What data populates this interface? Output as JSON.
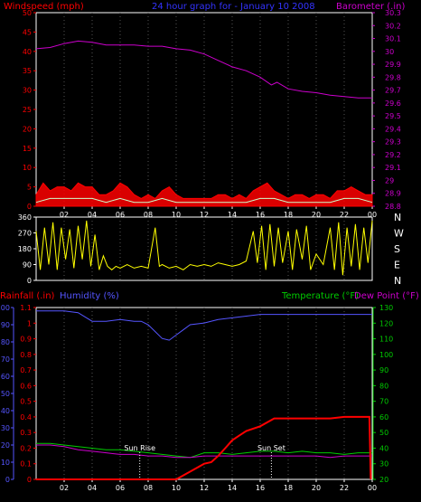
{
  "header": {
    "wind_title": "Windspeed (mph)",
    "graph_title": "24 hour graph for - January 10 2008",
    "baro_title": "Barometer (.in)"
  },
  "lower_header": {
    "rain_title": "Rainfall (.in)",
    "humidity_title": "Humidity (%)",
    "temp_title": "Temperature (°F)",
    "dew_title": "Dew Point (°F)"
  },
  "colors": {
    "wind": "#ff0000",
    "gust": "#ff0000",
    "wind_avg": "#ccffcc",
    "barometer": "#cc00cc",
    "direction": "#ffff00",
    "humidity": "#5555ff",
    "rain": "#ff0000",
    "temperature": "#00cc00",
    "dewpoint": "#cc00cc",
    "axis": "#ffffff",
    "grid": "#555555"
  },
  "sun_labels": {
    "sunrise": "Sun Rise",
    "sunset": "Sun Set"
  },
  "chart_data": [
    {
      "type": "line",
      "name": "wind-barometer",
      "x_ticks": [
        "02",
        "04",
        "06",
        "08",
        "10",
        "12",
        "14",
        "16",
        "18",
        "20",
        "22",
        "00"
      ],
      "left_axis": {
        "ticks": [
          0,
          5,
          10,
          15,
          20,
          25,
          30,
          35,
          40,
          45,
          50
        ],
        "ylim": [
          0,
          50
        ]
      },
      "right_axis": {
        "ticks": [
          "28.8",
          "28.9",
          "29",
          "29.1",
          "29.2",
          "29.3",
          "29.4",
          "29.5",
          "29.6",
          "29.7",
          "29.8",
          "29.9",
          "30",
          "30.1",
          "30.2",
          "30.3"
        ],
        "ylim": [
          28.8,
          30.3
        ]
      },
      "barometer": [
        [
          0,
          30.02
        ],
        [
          1,
          30.03
        ],
        [
          2,
          30.06
        ],
        [
          3,
          30.08
        ],
        [
          4,
          30.07
        ],
        [
          5,
          30.05
        ],
        [
          6,
          30.05
        ],
        [
          7,
          30.05
        ],
        [
          8,
          30.04
        ],
        [
          9,
          30.04
        ],
        [
          10,
          30.02
        ],
        [
          11,
          30.01
        ],
        [
          12,
          29.98
        ],
        [
          13,
          29.93
        ],
        [
          14,
          29.88
        ],
        [
          15,
          29.85
        ],
        [
          16,
          29.8
        ],
        [
          16.8,
          29.74
        ],
        [
          17.2,
          29.76
        ],
        [
          18,
          29.71
        ],
        [
          19,
          29.69
        ],
        [
          20,
          29.68
        ],
        [
          21,
          29.66
        ],
        [
          22,
          29.65
        ],
        [
          23,
          29.64
        ],
        [
          24,
          29.64
        ]
      ],
      "wind_gust": [
        [
          0,
          3
        ],
        [
          0.5,
          6
        ],
        [
          1,
          4
        ],
        [
          1.5,
          5
        ],
        [
          2,
          5
        ],
        [
          2.5,
          4
        ],
        [
          3,
          6
        ],
        [
          3.5,
          5
        ],
        [
          4,
          5
        ],
        [
          4.5,
          3
        ],
        [
          5,
          3
        ],
        [
          5.5,
          4
        ],
        [
          6,
          6
        ],
        [
          6.5,
          5
        ],
        [
          7,
          3
        ],
        [
          7.5,
          2
        ],
        [
          8,
          3
        ],
        [
          8.5,
          2
        ],
        [
          9,
          4
        ],
        [
          9.5,
          5
        ],
        [
          10,
          3
        ],
        [
          10.5,
          2
        ],
        [
          11,
          2
        ],
        [
          11.5,
          2
        ],
        [
          12,
          2
        ],
        [
          12.5,
          2
        ],
        [
          13,
          3
        ],
        [
          13.5,
          3
        ],
        [
          14,
          2
        ],
        [
          14.5,
          3
        ],
        [
          15,
          2
        ],
        [
          15.5,
          4
        ],
        [
          16,
          5
        ],
        [
          16.5,
          6
        ],
        [
          17,
          4
        ],
        [
          17.5,
          3
        ],
        [
          18,
          2
        ],
        [
          18.5,
          3
        ],
        [
          19,
          3
        ],
        [
          19.5,
          2
        ],
        [
          20,
          3
        ],
        [
          20.5,
          3
        ],
        [
          21,
          2
        ],
        [
          21.5,
          4
        ],
        [
          22,
          4
        ],
        [
          22.5,
          5
        ],
        [
          23,
          4
        ],
        [
          23.5,
          3
        ],
        [
          24,
          3
        ]
      ],
      "wind_avg": [
        [
          0,
          1
        ],
        [
          1,
          2
        ],
        [
          2,
          2
        ],
        [
          3,
          2
        ],
        [
          4,
          2
        ],
        [
          5,
          1
        ],
        [
          6,
          2
        ],
        [
          7,
          1
        ],
        [
          8,
          1
        ],
        [
          9,
          2
        ],
        [
          10,
          1
        ],
        [
          11,
          1
        ],
        [
          12,
          1
        ],
        [
          13,
          1
        ],
        [
          14,
          1
        ],
        [
          15,
          1
        ],
        [
          16,
          2
        ],
        [
          17,
          2
        ],
        [
          18,
          1
        ],
        [
          19,
          1
        ],
        [
          20,
          1
        ],
        [
          21,
          1
        ],
        [
          22,
          2
        ],
        [
          23,
          2
        ],
        [
          24,
          1
        ]
      ]
    },
    {
      "type": "line",
      "name": "wind-direction",
      "right_labels": [
        "N",
        "W",
        "S",
        "E",
        "N"
      ],
      "left_axis": {
        "ticks": [
          0,
          90,
          180,
          270,
          360
        ],
        "ylim": [
          0,
          360
        ]
      },
      "x_ticks": [
        "02",
        "04",
        "06",
        "08",
        "10",
        "12",
        "14",
        "16",
        "18",
        "20",
        "22",
        "00"
      ],
      "note": "highly variable; values sampled in degrees",
      "direction": [
        [
          0,
          280
        ],
        [
          0.3,
          60
        ],
        [
          0.6,
          300
        ],
        [
          0.9,
          90
        ],
        [
          1.2,
          330
        ],
        [
          1.5,
          60
        ],
        [
          1.8,
          300
        ],
        [
          2.1,
          120
        ],
        [
          2.4,
          290
        ],
        [
          2.7,
          70
        ],
        [
          3,
          310
        ],
        [
          3.3,
          120
        ],
        [
          3.6,
          340
        ],
        [
          3.9,
          80
        ],
        [
          4.2,
          260
        ],
        [
          4.5,
          60
        ],
        [
          4.8,
          140
        ],
        [
          5.1,
          80
        ],
        [
          5.4,
          60
        ],
        [
          5.7,
          80
        ],
        [
          6,
          70
        ],
        [
          6.5,
          90
        ],
        [
          7,
          70
        ],
        [
          7.5,
          80
        ],
        [
          8,
          70
        ],
        [
          8.5,
          300
        ],
        [
          8.8,
          80
        ],
        [
          9,
          90
        ],
        [
          9.5,
          70
        ],
        [
          10,
          80
        ],
        [
          10.5,
          60
        ],
        [
          11,
          90
        ],
        [
          11.5,
          80
        ],
        [
          12,
          90
        ],
        [
          12.5,
          80
        ],
        [
          13,
          100
        ],
        [
          13.5,
          90
        ],
        [
          14,
          80
        ],
        [
          14.5,
          90
        ],
        [
          15,
          110
        ],
        [
          15.5,
          280
        ],
        [
          15.8,
          100
        ],
        [
          16.1,
          310
        ],
        [
          16.4,
          60
        ],
        [
          16.7,
          320
        ],
        [
          17,
          80
        ],
        [
          17.3,
          300
        ],
        [
          17.6,
          100
        ],
        [
          18,
          280
        ],
        [
          18.3,
          60
        ],
        [
          18.6,
          290
        ],
        [
          19,
          120
        ],
        [
          19.3,
          310
        ],
        [
          19.6,
          60
        ],
        [
          20,
          150
        ],
        [
          20.5,
          90
        ],
        [
          21,
          300
        ],
        [
          21.3,
          60
        ],
        [
          21.6,
          330
        ],
        [
          21.9,
          30
        ],
        [
          22.2,
          300
        ],
        [
          22.5,
          80
        ],
        [
          22.8,
          320
        ],
        [
          23.1,
          60
        ],
        [
          23.4,
          300
        ],
        [
          23.7,
          100
        ],
        [
          24,
          340
        ]
      ]
    },
    {
      "type": "line",
      "name": "rain-humidity-temp",
      "x_ticks": [
        "02",
        "04",
        "06",
        "08",
        "10",
        "12",
        "14",
        "16",
        "18",
        "20",
        "22",
        "00"
      ],
      "left_outer_axis": {
        "label": "Humidity",
        "ticks": [
          0,
          10,
          20,
          30,
          40,
          50,
          60,
          70,
          80,
          90,
          100
        ],
        "ylim": [
          0,
          100
        ]
      },
      "left_inner_axis": {
        "label": "Rainfall",
        "ticks": [
          "0",
          "0.1",
          "0.2",
          "0.3",
          "0.4",
          "0.5",
          "0.6",
          "0.7",
          "0.8",
          "0.9",
          "1",
          "1.1"
        ],
        "ylim": [
          0,
          1.1
        ]
      },
      "right_axis": {
        "label": "Temperature",
        "ticks": [
          20,
          30,
          40,
          50,
          60,
          70,
          80,
          90,
          100,
          110,
          120,
          130
        ],
        "ylim": [
          20,
          130
        ]
      },
      "humidity": [
        [
          0,
          98
        ],
        [
          1,
          98
        ],
        [
          2,
          98
        ],
        [
          3,
          97
        ],
        [
          4,
          92
        ],
        [
          5,
          92
        ],
        [
          6,
          93
        ],
        [
          7,
          92
        ],
        [
          7.5,
          92
        ],
        [
          8,
          90
        ],
        [
          8.5,
          86
        ],
        [
          9,
          82
        ],
        [
          9.5,
          81
        ],
        [
          10,
          84
        ],
        [
          10.5,
          87
        ],
        [
          11,
          90
        ],
        [
          12,
          91
        ],
        [
          13,
          93
        ],
        [
          14,
          94
        ],
        [
          15,
          95
        ],
        [
          16,
          96
        ],
        [
          17,
          96
        ],
        [
          18,
          96
        ],
        [
          19,
          96
        ],
        [
          20,
          96
        ],
        [
          21,
          96
        ],
        [
          22,
          96
        ],
        [
          23,
          96
        ],
        [
          24,
          96
        ]
      ],
      "rainfall": [
        [
          0,
          0
        ],
        [
          1,
          0
        ],
        [
          2,
          0
        ],
        [
          3,
          0
        ],
        [
          4,
          0
        ],
        [
          5,
          0
        ],
        [
          6,
          0
        ],
        [
          7,
          0
        ],
        [
          8,
          0
        ],
        [
          9,
          0
        ],
        [
          10,
          0
        ],
        [
          11,
          0.05
        ],
        [
          12,
          0.1
        ],
        [
          12.5,
          0.11
        ],
        [
          13,
          0.15
        ],
        [
          13.5,
          0.2
        ],
        [
          14,
          0.25
        ],
        [
          14.5,
          0.28
        ],
        [
          15,
          0.31
        ],
        [
          16,
          0.34
        ],
        [
          17,
          0.39
        ],
        [
          18,
          0.39
        ],
        [
          19,
          0.39
        ],
        [
          20,
          0.39
        ],
        [
          21,
          0.39
        ],
        [
          22,
          0.4
        ],
        [
          23,
          0.4
        ],
        [
          23.8,
          0.4
        ],
        [
          23.9,
          0.0
        ]
      ],
      "temperature": [
        [
          0,
          43
        ],
        [
          1,
          43
        ],
        [
          2,
          42
        ],
        [
          3,
          41
        ],
        [
          4,
          40
        ],
        [
          5,
          39
        ],
        [
          6,
          39
        ],
        [
          7,
          38
        ],
        [
          8,
          37
        ],
        [
          9,
          36
        ],
        [
          10,
          35
        ],
        [
          11,
          34
        ],
        [
          12,
          37
        ],
        [
          13,
          37
        ],
        [
          14,
          36
        ],
        [
          15,
          37
        ],
        [
          16,
          38
        ],
        [
          17,
          38
        ],
        [
          18,
          37
        ],
        [
          19,
          38
        ],
        [
          20,
          37
        ],
        [
          21,
          37
        ],
        [
          22,
          36
        ],
        [
          23,
          37
        ],
        [
          24,
          37
        ]
      ],
      "dewpoint": [
        [
          0,
          42
        ],
        [
          1,
          42
        ],
        [
          2,
          41
        ],
        [
          3,
          39
        ],
        [
          4,
          38
        ],
        [
          5,
          37
        ],
        [
          6,
          36
        ],
        [
          7,
          36
        ],
        [
          8,
          35
        ],
        [
          9,
          35
        ],
        [
          10,
          34
        ],
        [
          11,
          34
        ],
        [
          12,
          35
        ],
        [
          13,
          35
        ],
        [
          14,
          35
        ],
        [
          15,
          35
        ],
        [
          16,
          35
        ],
        [
          17,
          35
        ],
        [
          18,
          35
        ],
        [
          19,
          35
        ],
        [
          20,
          35
        ],
        [
          21,
          34
        ],
        [
          22,
          35
        ],
        [
          23,
          35
        ],
        [
          24,
          35
        ]
      ],
      "sunrise_hour": 7.4,
      "sunset_hour": 16.8
    }
  ]
}
